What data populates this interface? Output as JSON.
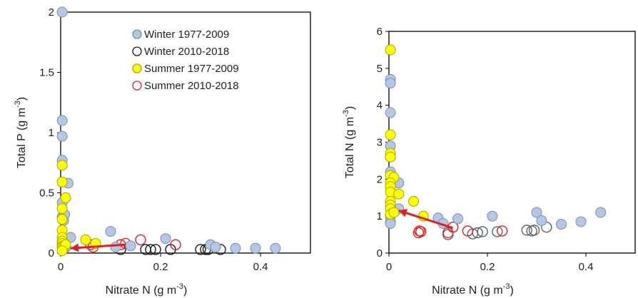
{
  "chart_data": [
    {
      "type": "scatter",
      "title": "",
      "xlabel": "Nitrate N (g m",
      "xlabel_sup": "-3",
      "xlabel_end": ")",
      "ylabel": "Total P (g m",
      "ylabel_sup": "-3",
      "ylabel_end": ")",
      "xlim": [
        0,
        0.5
      ],
      "ylim": [
        0,
        2
      ],
      "xticks": [
        0,
        0.2,
        0.4
      ],
      "xtick_labels": [
        "0",
        "0.2",
        "0.4"
      ],
      "yticks": [
        0,
        0.5,
        1,
        1.5,
        2
      ],
      "ytick_labels": [
        "0",
        "0.5",
        "1",
        "1.5",
        "2"
      ],
      "grid": false,
      "legend_placement": "top-right",
      "series": [
        {
          "name": "Winter 1977-2009",
          "marker": "filled",
          "fill": "#b4c7e7",
          "stroke": "#7f8fa9",
          "points": [
            [
              0.003,
              2.0
            ],
            [
              0.003,
              1.1
            ],
            [
              0.003,
              0.97
            ],
            [
              0.003,
              0.77
            ],
            [
              0.003,
              0.73
            ],
            [
              0.003,
              0.42
            ],
            [
              0.003,
              0.3
            ],
            [
              0.006,
              0.27
            ],
            [
              0.015,
              0.58
            ],
            [
              0.008,
              0.32
            ],
            [
              0.02,
              0.13
            ],
            [
              0.1,
              0.18
            ],
            [
              0.11,
              0.05
            ],
            [
              0.14,
              0.06
            ],
            [
              0.21,
              0.12
            ],
            [
              0.3,
              0.07
            ],
            [
              0.31,
              0.05
            ],
            [
              0.35,
              0.04
            ],
            [
              0.39,
              0.04
            ],
            [
              0.43,
              0.04
            ],
            [
              0.01,
              0.05
            ],
            [
              0.005,
              0.08
            ]
          ]
        },
        {
          "name": "Winter 2010-2018",
          "marker": "open",
          "fill": "none",
          "stroke": "#1a1a1a",
          "points": [
            [
              0.12,
              0.03
            ],
            [
              0.17,
              0.03
            ],
            [
              0.18,
              0.03
            ],
            [
              0.19,
              0.03
            ],
            [
              0.22,
              0.03
            ],
            [
              0.28,
              0.03
            ],
            [
              0.29,
              0.03
            ],
            [
              0.295,
              0.03
            ],
            [
              0.32,
              0.03
            ]
          ]
        },
        {
          "name": "Summer 1977-2009",
          "marker": "filled",
          "fill": "#ffff00",
          "stroke": "#a6a600",
          "points": [
            [
              0.003,
              0.73
            ],
            [
              0.003,
              0.59
            ],
            [
              0.01,
              0.46
            ],
            [
              0.003,
              0.37
            ],
            [
              0.003,
              0.28
            ],
            [
              0.003,
              0.19
            ],
            [
              0.003,
              0.13
            ],
            [
              0.003,
              0.1
            ],
            [
              0.003,
              0.08
            ],
            [
              0.003,
              0.06
            ],
            [
              0.003,
              0.05
            ],
            [
              0.005,
              0.04
            ],
            [
              0.05,
              0.11
            ],
            [
              0.07,
              0.08
            ],
            [
              0.01,
              0.07
            ],
            [
              0.003,
              0.02
            ]
          ]
        },
        {
          "name": "Summer 2010-2018",
          "marker": "open",
          "fill": "none",
          "stroke": "#e02020",
          "points": [
            [
              0.06,
              0.07
            ],
            [
              0.065,
              0.05
            ],
            [
              0.12,
              0.07
            ],
            [
              0.13,
              0.08
            ],
            [
              0.16,
              0.11
            ],
            [
              0.23,
              0.07
            ],
            [
              0.01,
              0.05
            ]
          ]
        }
      ],
      "arrow": {
        "from": [
          0.13,
          0.07
        ],
        "to": [
          0.02,
          0.04
        ],
        "color": "#e02020"
      }
    },
    {
      "type": "scatter",
      "title": "",
      "xlabel": "Nitrate N (g m",
      "xlabel_sup": "-3",
      "xlabel_end": ")",
      "ylabel": "Total N (g m",
      "ylabel_sup": "-3",
      "ylabel_end": ")",
      "xlim": [
        0,
        0.5
      ],
      "ylim": [
        0,
        6
      ],
      "xticks": [
        0,
        0.2,
        0.4
      ],
      "xtick_labels": [
        "0",
        "0.2",
        "0.4"
      ],
      "yticks": [
        0,
        1,
        2,
        3,
        4,
        5,
        6
      ],
      "ytick_labels": [
        "0",
        "1",
        "2",
        "3",
        "4",
        "5",
        "6"
      ],
      "grid": false,
      "series": [
        {
          "name": "Winter 1977-2009",
          "marker": "filled",
          "fill": "#b4c7e7",
          "stroke": "#7f8fa9",
          "points": [
            [
              0.003,
              4.7
            ],
            [
              0.003,
              4.6
            ],
            [
              0.003,
              3.8
            ],
            [
              0.003,
              2.9
            ],
            [
              0.003,
              2.6
            ],
            [
              0.003,
              2.2
            ],
            [
              0.02,
              1.9
            ],
            [
              0.02,
              1.2
            ],
            [
              0.003,
              1.0
            ],
            [
              0.003,
              0.85
            ],
            [
              0.003,
              0.8
            ],
            [
              0.1,
              0.95
            ],
            [
              0.11,
              0.8
            ],
            [
              0.14,
              0.93
            ],
            [
              0.21,
              1.0
            ],
            [
              0.3,
              1.1
            ],
            [
              0.31,
              0.88
            ],
            [
              0.35,
              0.78
            ],
            [
              0.39,
              0.85
            ],
            [
              0.43,
              1.1
            ]
          ]
        },
        {
          "name": "Winter 2010-2018",
          "marker": "open",
          "fill": "none",
          "stroke": "#5a6470",
          "points": [
            [
              0.12,
              0.5
            ],
            [
              0.17,
              0.52
            ],
            [
              0.18,
              0.55
            ],
            [
              0.19,
              0.58
            ],
            [
              0.22,
              0.58
            ],
            [
              0.28,
              0.62
            ],
            [
              0.29,
              0.6
            ],
            [
              0.295,
              0.62
            ],
            [
              0.32,
              0.7
            ]
          ]
        },
        {
          "name": "Summer 1977-2009",
          "marker": "filled",
          "fill": "#ffff00",
          "stroke": "#a6a600",
          "points": [
            [
              0.003,
              5.5
            ],
            [
              0.003,
              3.2
            ],
            [
              0.003,
              2.7
            ],
            [
              0.003,
              2.6
            ],
            [
              0.003,
              2.1
            ],
            [
              0.01,
              2.05
            ],
            [
              0.003,
              1.9
            ],
            [
              0.003,
              1.8
            ],
            [
              0.003,
              1.65
            ],
            [
              0.003,
              1.4
            ],
            [
              0.003,
              1.3
            ],
            [
              0.003,
              1.2
            ],
            [
              0.003,
              1.05
            ],
            [
              0.01,
              1.1
            ],
            [
              0.02,
              1.6
            ],
            [
              0.05,
              1.4
            ],
            [
              0.07,
              1.0
            ]
          ]
        },
        {
          "name": "Summer 2010-2018",
          "marker": "open",
          "fill": "none",
          "stroke": "#e02020",
          "points": [
            [
              0.06,
              0.55
            ],
            [
              0.062,
              0.6
            ],
            [
              0.065,
              0.58
            ],
            [
              0.12,
              0.55
            ],
            [
              0.13,
              0.7
            ],
            [
              0.16,
              0.6
            ],
            [
              0.23,
              0.6
            ]
          ]
        }
      ],
      "arrow": {
        "from": [
          0.13,
          0.68
        ],
        "to": [
          0.02,
          1.15
        ],
        "color": "#e02020"
      }
    }
  ]
}
